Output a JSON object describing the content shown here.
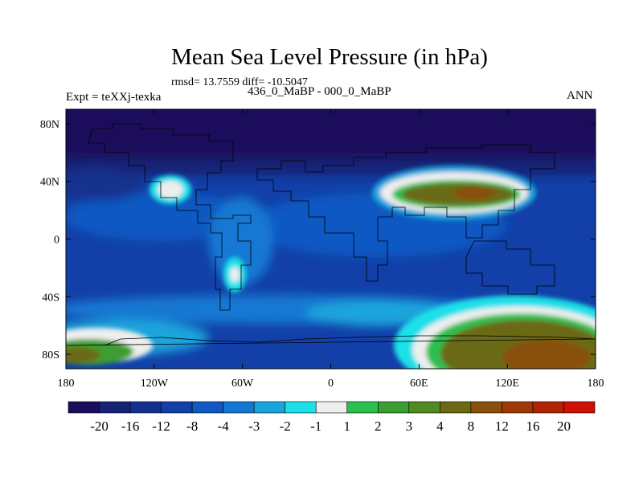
{
  "chart_data": {
    "type": "heatmap",
    "title": "Mean Sea Level Pressure (in hPa)",
    "stats_text": "rmsd= 13.7559 diff= -10.5047",
    "subtitle": "436_0_MaBP - 000_0_MaBP",
    "left_label": "Expt = teXXj-texka",
    "right_label": "ANN",
    "xlim": [
      -180,
      180
    ],
    "ylim": [
      -90,
      90
    ],
    "x_ticks": [
      {
        "value": -180,
        "label": "180"
      },
      {
        "value": -120,
        "label": "120W"
      },
      {
        "value": -60,
        "label": "60W"
      },
      {
        "value": 0,
        "label": "0"
      },
      {
        "value": 60,
        "label": "60E"
      },
      {
        "value": 120,
        "label": "120E"
      },
      {
        "value": 180,
        "label": "180"
      }
    ],
    "y_ticks": [
      {
        "value": 80,
        "label": "80N"
      },
      {
        "value": 40,
        "label": "40N"
      },
      {
        "value": 0,
        "label": "0"
      },
      {
        "value": -40,
        "label": "40S"
      },
      {
        "value": -80,
        "label": "80S"
      }
    ],
    "colorbar": {
      "levels": [
        "-20",
        "-16",
        "-12",
        "-8",
        "-4",
        "-3",
        "-2",
        "-1",
        "1",
        "2",
        "3",
        "4",
        "8",
        "12",
        "16",
        "20"
      ],
      "colors": [
        "#1a0d5c",
        "#162275",
        "#14308e",
        "#1240a8",
        "#1058c2",
        "#1478d2",
        "#1aa4dc",
        "#1ce0e8",
        "#eeeeee",
        "#2bbf50",
        "#3c9e32",
        "#4f8a22",
        "#6b6a12",
        "#88500a",
        "#9c3a06",
        "#ae2404",
        "#cc1005"
      ]
    },
    "regions": [
      {
        "name": "arctic",
        "level_index": 0,
        "lon_range": [
          -180,
          180
        ],
        "lat_range": [
          48,
          90
        ]
      },
      {
        "name": "north-asia-high",
        "level_index": 12,
        "lon_range": [
          45,
          140
        ],
        "lat_range": [
          26,
          46
        ]
      },
      {
        "name": "north-america-high",
        "level_index": 8,
        "lon_range": [
          -128,
          -108
        ],
        "lat_range": [
          26,
          40
        ]
      },
      {
        "name": "antarctic-high",
        "level_index": 12,
        "lon_range": [
          60,
          180
        ],
        "lat_range": [
          -90,
          -42
        ]
      },
      {
        "name": "south-pacific-high",
        "level_index": 10,
        "lon_range": [
          -180,
          -130
        ],
        "lat_range": [
          -90,
          -66
        ]
      }
    ]
  }
}
